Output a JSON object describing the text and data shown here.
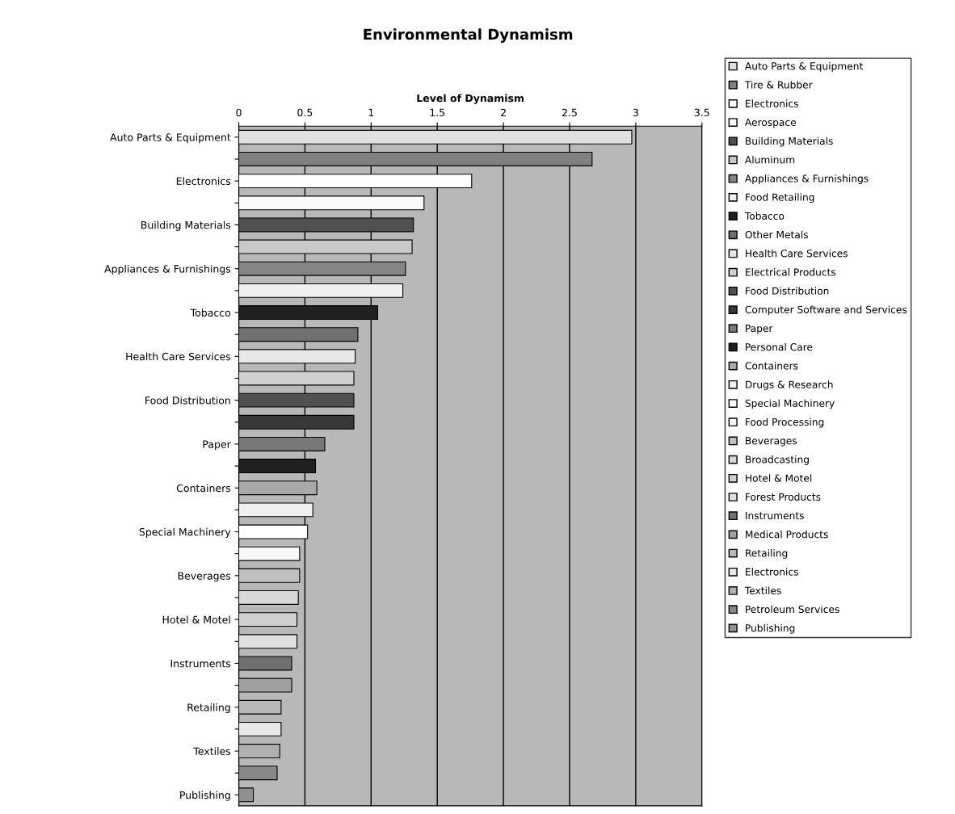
{
  "chart_data": {
    "type": "bar",
    "orientation": "horizontal",
    "title": "Environmental Dynamism",
    "xlabel": "Level of Dynamism",
    "categories": [
      "Auto Parts & Equipment",
      null,
      "Electronics",
      null,
      "Building Materials",
      null,
      "Appliances & Furnishings",
      null,
      "Tobacco",
      null,
      "Health Care Services",
      null,
      "Food Distribution",
      null,
      "Paper",
      null,
      "Containers",
      null,
      "Special Machinery",
      null,
      "Beverages",
      null,
      "Hotel & Motel",
      null,
      "Instruments",
      null,
      "Retailing",
      null,
      "Textiles",
      null,
      "Publishing"
    ],
    "xlim": [
      0,
      3.5
    ],
    "xticks": [
      0,
      0.5,
      1,
      1.5,
      2,
      2.5,
      3,
      3.5
    ],
    "grid": "x",
    "legend": "right",
    "series": [
      {
        "name": "Auto Parts & Equipment",
        "color": "#e0e0e0",
        "values": [
          2.97,
          null,
          null,
          null,
          null,
          null,
          null,
          null,
          null,
          null,
          null,
          null,
          null,
          null,
          null,
          null,
          null,
          null,
          null,
          null,
          null,
          null,
          null,
          null,
          null,
          null,
          null,
          null,
          null,
          null,
          null
        ]
      },
      {
        "name": "Tire & Rubber",
        "color": "#808080",
        "values": [
          null,
          2.67,
          null,
          null,
          null,
          null,
          null,
          null,
          null,
          null,
          null,
          null,
          null,
          null,
          null,
          null,
          null,
          null,
          null,
          null,
          null,
          null,
          null,
          null,
          null,
          null,
          null,
          null,
          null,
          null,
          null
        ]
      },
      {
        "name": "Electronics",
        "color": "#ffffff",
        "values": [
          null,
          null,
          1.76,
          null,
          null,
          null,
          null,
          null,
          null,
          null,
          null,
          null,
          null,
          null,
          null,
          null,
          null,
          null,
          null,
          null,
          null,
          null,
          null,
          null,
          null,
          null,
          null,
          null,
          null,
          null,
          null
        ]
      },
      {
        "name": "Aerospace",
        "color": "#fafafa",
        "values": [
          null,
          null,
          null,
          1.4,
          null,
          null,
          null,
          null,
          null,
          null,
          null,
          null,
          null,
          null,
          null,
          null,
          null,
          null,
          null,
          null,
          null,
          null,
          null,
          null,
          null,
          null,
          null,
          null,
          null,
          null,
          null
        ]
      },
      {
        "name": "Building Materials",
        "color": "#505050",
        "values": [
          null,
          null,
          null,
          null,
          1.32,
          null,
          null,
          null,
          null,
          null,
          null,
          null,
          null,
          null,
          null,
          null,
          null,
          null,
          null,
          null,
          null,
          null,
          null,
          null,
          null,
          null,
          null,
          null,
          null,
          null,
          null
        ]
      },
      {
        "name": "Aluminum",
        "color": "#c8c8c8",
        "values": [
          null,
          null,
          null,
          null,
          null,
          1.31,
          null,
          null,
          null,
          null,
          null,
          null,
          null,
          null,
          null,
          null,
          null,
          null,
          null,
          null,
          null,
          null,
          null,
          null,
          null,
          null,
          null,
          null,
          null,
          null,
          null
        ]
      },
      {
        "name": "Appliances & Furnishings",
        "color": "#858585",
        "values": [
          null,
          null,
          null,
          null,
          null,
          null,
          1.26,
          null,
          null,
          null,
          null,
          null,
          null,
          null,
          null,
          null,
          null,
          null,
          null,
          null,
          null,
          null,
          null,
          null,
          null,
          null,
          null,
          null,
          null,
          null,
          null
        ]
      },
      {
        "name": "Food Retailing",
        "color": "#f0f0f0",
        "values": [
          null,
          null,
          null,
          null,
          null,
          null,
          null,
          1.24,
          null,
          null,
          null,
          null,
          null,
          null,
          null,
          null,
          null,
          null,
          null,
          null,
          null,
          null,
          null,
          null,
          null,
          null,
          null,
          null,
          null,
          null,
          null
        ]
      },
      {
        "name": "Tobacco",
        "color": "#202020",
        "values": [
          null,
          null,
          null,
          null,
          null,
          null,
          null,
          null,
          1.05,
          null,
          null,
          null,
          null,
          null,
          null,
          null,
          null,
          null,
          null,
          null,
          null,
          null,
          null,
          null,
          null,
          null,
          null,
          null,
          null,
          null,
          null
        ]
      },
      {
        "name": "Other Metals",
        "color": "#707070",
        "values": [
          null,
          null,
          null,
          null,
          null,
          null,
          null,
          null,
          null,
          0.9,
          null,
          null,
          null,
          null,
          null,
          null,
          null,
          null,
          null,
          null,
          null,
          null,
          null,
          null,
          null,
          null,
          null,
          null,
          null,
          null,
          null
        ]
      },
      {
        "name": "Health Care Services",
        "color": "#e8e8e8",
        "values": [
          null,
          null,
          null,
          null,
          null,
          null,
          null,
          null,
          null,
          null,
          0.88,
          null,
          null,
          null,
          null,
          null,
          null,
          null,
          null,
          null,
          null,
          null,
          null,
          null,
          null,
          null,
          null,
          null,
          null,
          null,
          null
        ]
      },
      {
        "name": "Electrical Products",
        "color": "#d0d0d0",
        "values": [
          null,
          null,
          null,
          null,
          null,
          null,
          null,
          null,
          null,
          null,
          null,
          0.87,
          null,
          null,
          null,
          null,
          null,
          null,
          null,
          null,
          null,
          null,
          null,
          null,
          null,
          null,
          null,
          null,
          null,
          null,
          null
        ]
      },
      {
        "name": "Food Distribution",
        "color": "#505050",
        "values": [
          null,
          null,
          null,
          null,
          null,
          null,
          null,
          null,
          null,
          null,
          null,
          null,
          0.87,
          null,
          null,
          null,
          null,
          null,
          null,
          null,
          null,
          null,
          null,
          null,
          null,
          null,
          null,
          null,
          null,
          null,
          null
        ]
      },
      {
        "name": "Computer Software and Services",
        "color": "#383838",
        "values": [
          null,
          null,
          null,
          null,
          null,
          null,
          null,
          null,
          null,
          null,
          null,
          null,
          null,
          0.87,
          null,
          null,
          null,
          null,
          null,
          null,
          null,
          null,
          null,
          null,
          null,
          null,
          null,
          null,
          null,
          null,
          null
        ]
      },
      {
        "name": "Paper",
        "color": "#787878",
        "values": [
          null,
          null,
          null,
          null,
          null,
          null,
          null,
          null,
          null,
          null,
          null,
          null,
          null,
          null,
          0.65,
          null,
          null,
          null,
          null,
          null,
          null,
          null,
          null,
          null,
          null,
          null,
          null,
          null,
          null,
          null,
          null
        ]
      },
      {
        "name": "Personal Care",
        "color": "#202020",
        "values": [
          null,
          null,
          null,
          null,
          null,
          null,
          null,
          null,
          null,
          null,
          null,
          null,
          null,
          null,
          null,
          0.58,
          null,
          null,
          null,
          null,
          null,
          null,
          null,
          null,
          null,
          null,
          null,
          null,
          null,
          null,
          null
        ]
      },
      {
        "name": "Containers",
        "color": "#a8a8a8",
        "values": [
          null,
          null,
          null,
          null,
          null,
          null,
          null,
          null,
          null,
          null,
          null,
          null,
          null,
          null,
          null,
          null,
          0.59,
          null,
          null,
          null,
          null,
          null,
          null,
          null,
          null,
          null,
          null,
          null,
          null,
          null,
          null
        ]
      },
      {
        "name": "Drugs & Research",
        "color": "#f0f0f0",
        "values": [
          null,
          null,
          null,
          null,
          null,
          null,
          null,
          null,
          null,
          null,
          null,
          null,
          null,
          null,
          null,
          null,
          null,
          0.56,
          null,
          null,
          null,
          null,
          null,
          null,
          null,
          null,
          null,
          null,
          null,
          null,
          null
        ]
      },
      {
        "name": "Special Machinery",
        "color": "#ffffff",
        "values": [
          null,
          null,
          null,
          null,
          null,
          null,
          null,
          null,
          null,
          null,
          null,
          null,
          null,
          null,
          null,
          null,
          null,
          null,
          0.52,
          null,
          null,
          null,
          null,
          null,
          null,
          null,
          null,
          null,
          null,
          null,
          null
        ]
      },
      {
        "name": "Food Processing",
        "color": "#f8f8f8",
        "values": [
          null,
          null,
          null,
          null,
          null,
          null,
          null,
          null,
          null,
          null,
          null,
          null,
          null,
          null,
          null,
          null,
          null,
          null,
          null,
          0.46,
          null,
          null,
          null,
          null,
          null,
          null,
          null,
          null,
          null,
          null,
          null
        ]
      },
      {
        "name": "Beverages",
        "color": "#c0c0c0",
        "values": [
          null,
          null,
          null,
          null,
          null,
          null,
          null,
          null,
          null,
          null,
          null,
          null,
          null,
          null,
          null,
          null,
          null,
          null,
          null,
          null,
          0.46,
          null,
          null,
          null,
          null,
          null,
          null,
          null,
          null,
          null,
          null
        ]
      },
      {
        "name": "Broadcasting",
        "color": "#d8d8d8",
        "values": [
          null,
          null,
          null,
          null,
          null,
          null,
          null,
          null,
          null,
          null,
          null,
          null,
          null,
          null,
          null,
          null,
          null,
          null,
          null,
          null,
          null,
          0.45,
          null,
          null,
          null,
          null,
          null,
          null,
          null,
          null,
          null
        ]
      },
      {
        "name": "Hotel & Motel",
        "color": "#d0d0d0",
        "values": [
          null,
          null,
          null,
          null,
          null,
          null,
          null,
          null,
          null,
          null,
          null,
          null,
          null,
          null,
          null,
          null,
          null,
          null,
          null,
          null,
          null,
          null,
          0.44,
          null,
          null,
          null,
          null,
          null,
          null,
          null,
          null
        ]
      },
      {
        "name": "Forest Products",
        "color": "#e0e0e0",
        "values": [
          null,
          null,
          null,
          null,
          null,
          null,
          null,
          null,
          null,
          null,
          null,
          null,
          null,
          null,
          null,
          null,
          null,
          null,
          null,
          null,
          null,
          null,
          null,
          0.44,
          null,
          null,
          null,
          null,
          null,
          null,
          null
        ]
      },
      {
        "name": "Instruments",
        "color": "#707070",
        "values": [
          null,
          null,
          null,
          null,
          null,
          null,
          null,
          null,
          null,
          null,
          null,
          null,
          null,
          null,
          null,
          null,
          null,
          null,
          null,
          null,
          null,
          null,
          null,
          null,
          0.4,
          null,
          null,
          null,
          null,
          null,
          null
        ]
      },
      {
        "name": "Medical Products",
        "color": "#a0a0a0",
        "values": [
          null,
          null,
          null,
          null,
          null,
          null,
          null,
          null,
          null,
          null,
          null,
          null,
          null,
          null,
          null,
          null,
          null,
          null,
          null,
          null,
          null,
          null,
          null,
          null,
          null,
          0.4,
          null,
          null,
          null,
          null,
          null
        ]
      },
      {
        "name": "Retailing",
        "color": "#b8b8b8",
        "values": [
          null,
          null,
          null,
          null,
          null,
          null,
          null,
          null,
          null,
          null,
          null,
          null,
          null,
          null,
          null,
          null,
          null,
          null,
          null,
          null,
          null,
          null,
          null,
          null,
          null,
          null,
          0.32,
          null,
          null,
          null,
          null
        ]
      },
      {
        "name": "Electronics",
        "color": "#e8e8e8",
        "values": [
          null,
          null,
          null,
          null,
          null,
          null,
          null,
          null,
          null,
          null,
          null,
          null,
          null,
          null,
          null,
          null,
          null,
          null,
          null,
          null,
          null,
          null,
          null,
          null,
          null,
          null,
          null,
          0.32,
          null,
          null,
          null
        ]
      },
      {
        "name": "Textiles",
        "color": "#b0b0b0",
        "values": [
          null,
          null,
          null,
          null,
          null,
          null,
          null,
          null,
          null,
          null,
          null,
          null,
          null,
          null,
          null,
          null,
          null,
          null,
          null,
          null,
          null,
          null,
          null,
          null,
          null,
          null,
          null,
          null,
          0.31,
          null,
          null
        ]
      },
      {
        "name": "Petroleum Services",
        "color": "#888888",
        "values": [
          null,
          null,
          null,
          null,
          null,
          null,
          null,
          null,
          null,
          null,
          null,
          null,
          null,
          null,
          null,
          null,
          null,
          null,
          null,
          null,
          null,
          null,
          null,
          null,
          null,
          null,
          null,
          null,
          null,
          0.29,
          null
        ]
      },
      {
        "name": "Publishing",
        "color": "#909090",
        "values": [
          null,
          null,
          null,
          null,
          null,
          null,
          null,
          null,
          null,
          null,
          null,
          null,
          null,
          null,
          null,
          null,
          null,
          null,
          null,
          null,
          null,
          null,
          null,
          null,
          null,
          null,
          null,
          null,
          null,
          null,
          0.11
        ]
      }
    ]
  }
}
